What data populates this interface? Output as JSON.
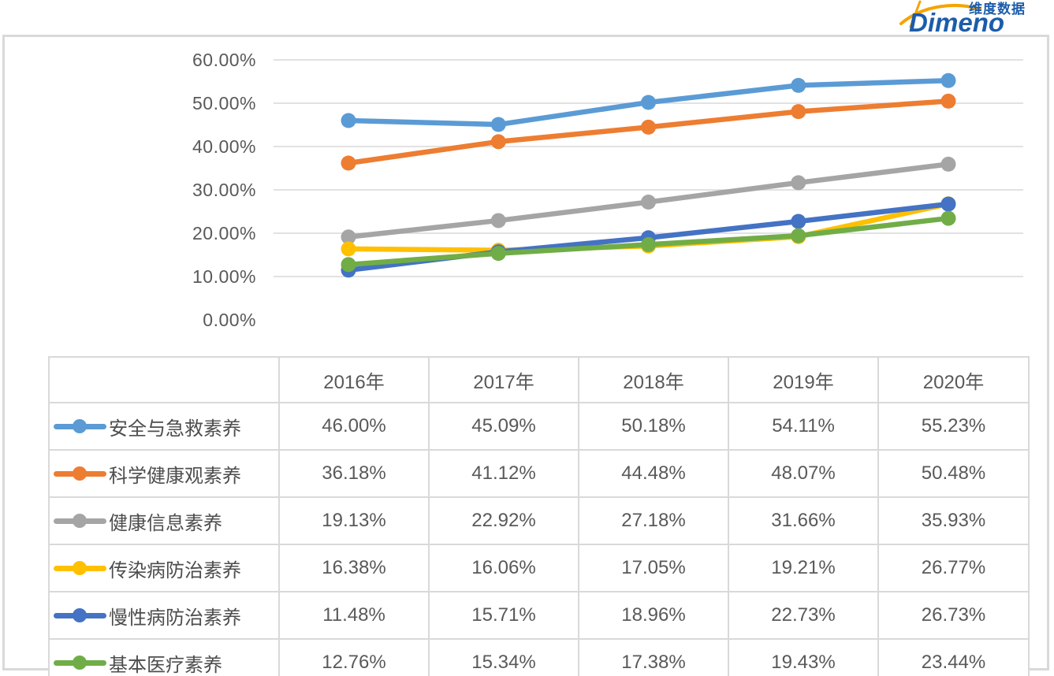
{
  "logo": {
    "brand": "Dimeno",
    "brand_cn": "维度数据",
    "blue": "#1b5cab",
    "orange": "#f5a400"
  },
  "chart_data": {
    "type": "line",
    "categories": [
      "2016年",
      "2017年",
      "2018年",
      "2019年",
      "2020年"
    ],
    "series": [
      {
        "name": "安全与急救素养",
        "color": "#5B9BD5",
        "values": [
          46.0,
          45.09,
          50.18,
          54.11,
          55.23
        ]
      },
      {
        "name": "科学健康观素养",
        "color": "#ED7D31",
        "values": [
          36.18,
          41.12,
          44.48,
          48.07,
          50.48
        ]
      },
      {
        "name": "健康信息素养",
        "color": "#A5A5A5",
        "values": [
          19.13,
          22.92,
          27.18,
          31.66,
          35.93
        ]
      },
      {
        "name": "传染病防治素养",
        "color": "#FFC000",
        "values": [
          16.38,
          16.06,
          17.05,
          19.21,
          26.77
        ]
      },
      {
        "name": "慢性病防治素养",
        "color": "#4472C4",
        "values": [
          11.48,
          15.71,
          18.96,
          22.73,
          26.73
        ]
      },
      {
        "name": "基本医疗素养",
        "color": "#70AD47",
        "values": [
          12.76,
          15.34,
          17.38,
          19.43,
          23.44
        ]
      }
    ],
    "title": "",
    "xlabel": "",
    "ylabel": "",
    "ylim": [
      0,
      60
    ],
    "ytick_step": 10,
    "ytick_labels": [
      "60.00%",
      "50.00%",
      "40.00%",
      "30.00%",
      "20.00%",
      "10.00%",
      "0.00%"
    ],
    "value_suffix": "%",
    "grid": true,
    "legend_position": "table-rows-left",
    "gridline_color": "#d9d9d9"
  }
}
